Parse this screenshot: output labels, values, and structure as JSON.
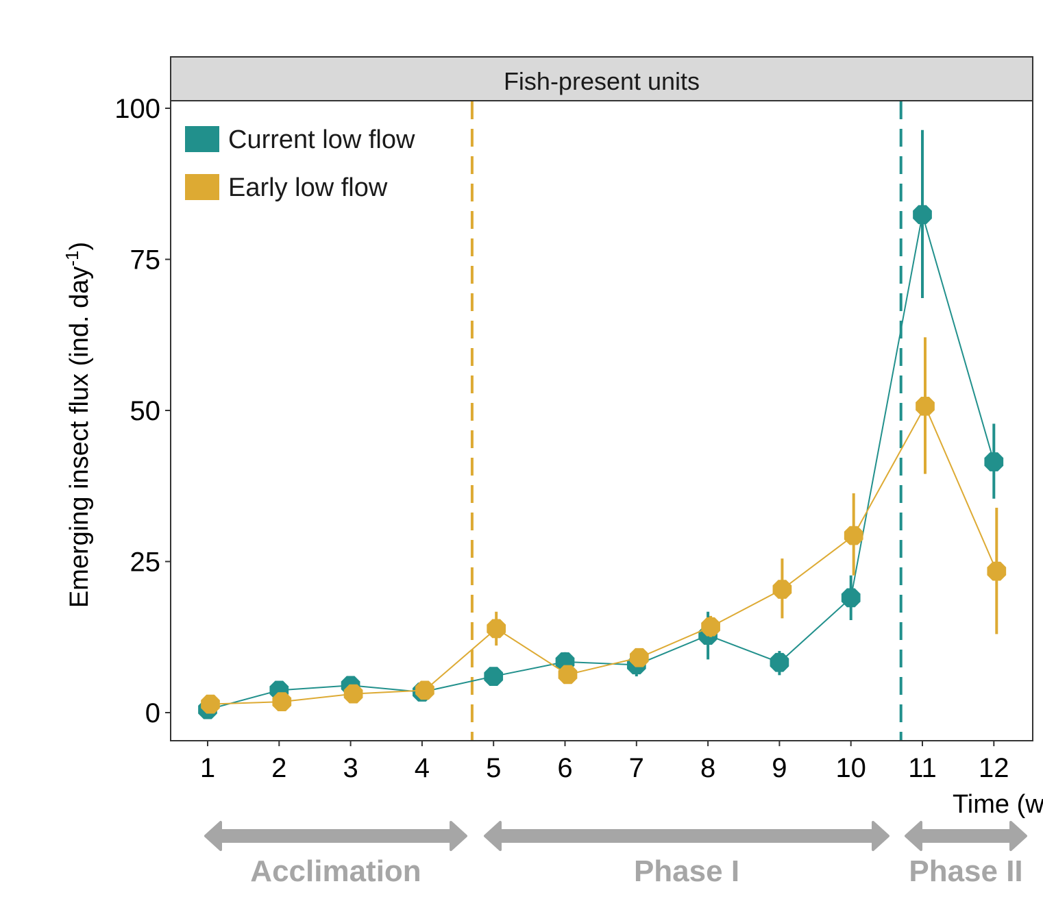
{
  "chart_data": {
    "type": "line",
    "title": "",
    "panel_strip": "Fish-present units",
    "xlabel": "Time (weeks)",
    "ylabel": "Emerging insect flux (ind. day",
    "ylabel_superscript": "-1",
    "ylabel_close": ")",
    "xlim": [
      0.5,
      12.55
    ],
    "ylim": [
      -4.5,
      104
    ],
    "x_ticks": [
      1,
      2,
      3,
      4,
      5,
      6,
      7,
      8,
      9,
      10,
      11,
      12
    ],
    "y_ticks": [
      0,
      25,
      50,
      75,
      100
    ],
    "grid": false,
    "legend_position": "top-left",
    "x": [
      1,
      2,
      3,
      4,
      5,
      6,
      7,
      8,
      9,
      10,
      11,
      12
    ],
    "series": [
      {
        "name": "Current low flow",
        "color": "#21908C",
        "values": [
          0.5,
          3.7,
          4.5,
          3.4,
          6.0,
          8.4,
          7.9,
          12.8,
          8.3,
          19.0,
          82.4,
          41.5
        ],
        "error_low": [
          0,
          2.8,
          3.6,
          2.5,
          5.0,
          7.0,
          6.0,
          8.8,
          6.2,
          15.3,
          68.6,
          35.4
        ],
        "error_high": [
          1.0,
          4.6,
          5.4,
          4.3,
          7.0,
          10.0,
          9.0,
          16.7,
          10.2,
          22.7,
          96.4,
          47.8
        ]
      },
      {
        "name": "Early low flow",
        "color": "#DDAA33",
        "values": [
          1.4,
          1.8,
          3.1,
          3.7,
          13.9,
          6.3,
          9.1,
          14.2,
          20.4,
          29.3,
          50.7,
          23.4
        ],
        "error_low": [
          0.6,
          1.0,
          2.2,
          2.8,
          11.1,
          5.2,
          8.0,
          12.5,
          15.6,
          22.7,
          39.5,
          13.0
        ],
        "error_high": [
          2.2,
          2.6,
          4.0,
          4.6,
          16.7,
          7.4,
          10.2,
          16.0,
          25.5,
          36.3,
          62.1,
          33.9
        ]
      }
    ],
    "reference_lines": [
      {
        "x": 4.7,
        "color": "#DDAA33",
        "style": "dashed"
      },
      {
        "x": 10.7,
        "color": "#21908C",
        "style": "dashed"
      }
    ],
    "phases": [
      {
        "label": "Acclimation",
        "from": 1,
        "to": 4.7
      },
      {
        "label": "Phase I",
        "from": 4.7,
        "to": 10.7
      },
      {
        "label": "Phase II",
        "from": 10.7,
        "to": 12.5
      }
    ],
    "phase_color": "#A6A6A6"
  }
}
